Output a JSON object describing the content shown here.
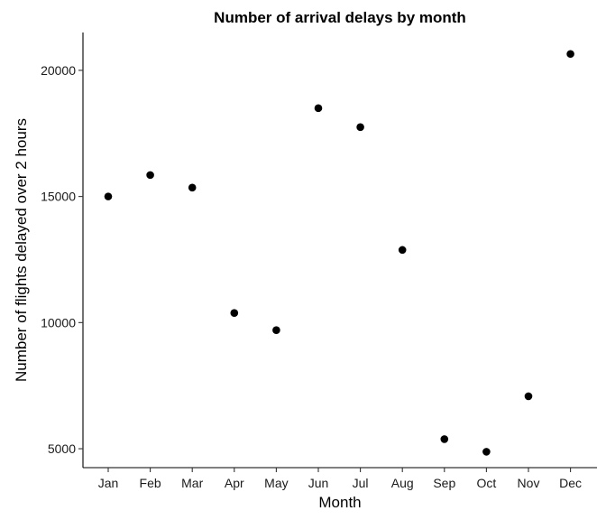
{
  "chart_data": {
    "type": "scatter",
    "title": "Number of arrival delays by month",
    "xlabel": "Month",
    "ylabel": "Number of flights delayed over 2 hours",
    "categories": [
      "Jan",
      "Feb",
      "Mar",
      "Apr",
      "May",
      "Jun",
      "Jul",
      "Aug",
      "Sep",
      "Oct",
      "Nov",
      "Dec"
    ],
    "values": [
      15000,
      15850,
      15350,
      10380,
      9700,
      18500,
      17750,
      12880,
      5380,
      4880,
      7080,
      20650
    ],
    "ylim": [
      4250,
      21500
    ],
    "yticks": [
      5000,
      10000,
      15000,
      20000
    ],
    "ytick_labels": [
      "5000",
      "10000",
      "15000",
      "20000"
    ],
    "grid": false,
    "legend": "none",
    "point_color": "#000000"
  }
}
